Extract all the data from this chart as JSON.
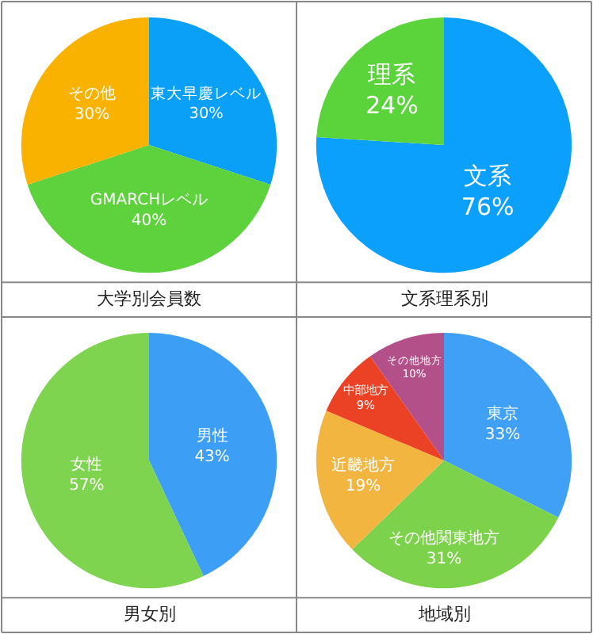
{
  "chart_data": [
    {
      "type": "pie",
      "title": "大学別会員数",
      "categories": [
        "東大早慶レベル",
        "GMARCHレベル",
        "その他"
      ],
      "values": [
        30,
        40,
        30
      ],
      "value_labels": [
        "30%",
        "40%",
        "30%"
      ],
      "colors": [
        "#0aa0f8",
        "#5dd23c",
        "#f9b200"
      ]
    },
    {
      "type": "pie",
      "title": "文系理系別",
      "categories": [
        "文系",
        "理系"
      ],
      "values": [
        76,
        24
      ],
      "value_labels": [
        "76%",
        "24%"
      ],
      "colors": [
        "#0aa0fc",
        "#5ad43a"
      ]
    },
    {
      "type": "pie",
      "title": "男女別",
      "categories": [
        "男性",
        "女性"
      ],
      "values": [
        43,
        57
      ],
      "value_labels": [
        "43%",
        "57%"
      ],
      "colors": [
        "#3d9ef5",
        "#7ed34f"
      ]
    },
    {
      "type": "pie",
      "title": "地域別",
      "categories": [
        "東京",
        "その他関東地方",
        "近畿地方",
        "中部地方",
        "その他地方"
      ],
      "values": [
        33,
        31,
        19,
        9,
        10
      ],
      "value_labels": [
        "33%",
        "31%",
        "19%",
        "9%",
        "10%"
      ],
      "colors": [
        "#3fa0f5",
        "#7dd24c",
        "#f2b640",
        "#eb4125",
        "#b3508a"
      ]
    }
  ]
}
